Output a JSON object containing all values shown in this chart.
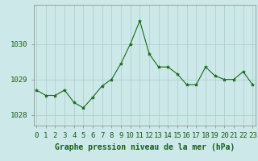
{
  "x": [
    0,
    1,
    2,
    3,
    4,
    5,
    6,
    7,
    8,
    9,
    10,
    11,
    12,
    13,
    14,
    15,
    16,
    17,
    18,
    19,
    20,
    21,
    22,
    23
  ],
  "y": [
    1028.7,
    1028.55,
    1028.55,
    1028.7,
    1028.35,
    1028.2,
    1028.5,
    1028.82,
    1029.0,
    1029.45,
    1030.0,
    1030.65,
    1029.72,
    1029.35,
    1029.35,
    1029.15,
    1028.85,
    1028.85,
    1029.35,
    1029.1,
    1029.0,
    1029.0,
    1029.22,
    1028.85
  ],
  "line_color": "#1a6b1a",
  "marker": "*",
  "marker_color": "#1a6b1a",
  "marker_size": 3,
  "bg_color": "#cce8e8",
  "grid_color": "#aacccc",
  "xlabel": "Graphe pression niveau de la mer (hPa)",
  "xlabel_color": "#1a5c1a",
  "xlabel_fontsize": 7,
  "tick_label_color": "#1a5c1a",
  "tick_fontsize": 6.5,
  "yticks": [
    1028,
    1029,
    1030
  ],
  "ylim": [
    1027.7,
    1031.1
  ],
  "xlim": [
    -0.3,
    23.3
  ],
  "xticks": [
    0,
    1,
    2,
    3,
    4,
    5,
    6,
    7,
    8,
    9,
    10,
    11,
    12,
    13,
    14,
    15,
    16,
    17,
    18,
    19,
    20,
    21,
    22,
    23
  ]
}
